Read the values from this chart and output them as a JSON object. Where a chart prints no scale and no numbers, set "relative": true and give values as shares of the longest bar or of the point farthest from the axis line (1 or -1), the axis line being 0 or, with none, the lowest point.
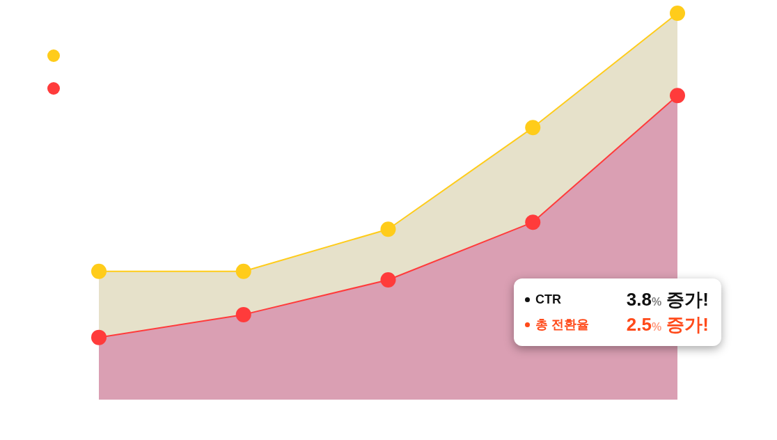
{
  "chart_data": {
    "type": "area",
    "relative": true,
    "marker": "circle",
    "categories": [
      null,
      null,
      null,
      null,
      null
    ],
    "series": [
      {
        "color": "#ffcc1a",
        "values": [
          0.332,
          0.332,
          0.441,
          0.704,
          1
        ]
      },
      {
        "color": "#ff3b3b",
        "values": [
          0.161,
          0.22,
          0.31,
          0.459,
          0.787
        ]
      }
    ],
    "annotations": [
      "CTR",
      "3.8% 증가!",
      "총 전환율",
      "2.5% 증가!"
    ]
  }
}
